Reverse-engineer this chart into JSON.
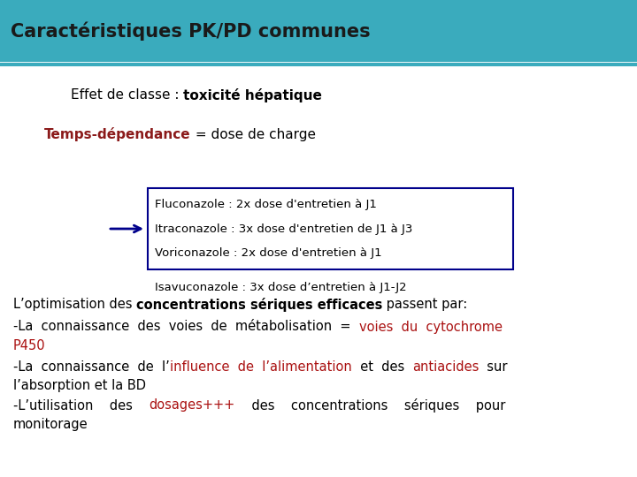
{
  "title": "Caractéristiques PK/PD communes",
  "title_bg": "#3aabbd",
  "title_color": "#1a1a1a",
  "title_fontsize": 15,
  "bg_color": "#ffffff",
  "line1_normal": "Effet de classe : ",
  "line1_bold": "toxicité hépatique",
  "line2_bold": "Temps-dépendance",
  "line2_bold_color": "#8b1a1a",
  "line2_normal": " = dose de charge",
  "box_lines": [
    "Fluconazole : 2x dose d'entretien à J1",
    "Itraconazole : 3x dose d'entretien de J1 à J3",
    "Voriconazole : 2x dose d'entretien à J1"
  ],
  "box_border": "#00008b",
  "isavuco_line": "Isavuconazole : 3x dose d’entretien à J1-J2",
  "arrow_color": "#00008b",
  "red_color": "#aa1111",
  "text_fontsize": 11,
  "para_fontsize": 10.5
}
